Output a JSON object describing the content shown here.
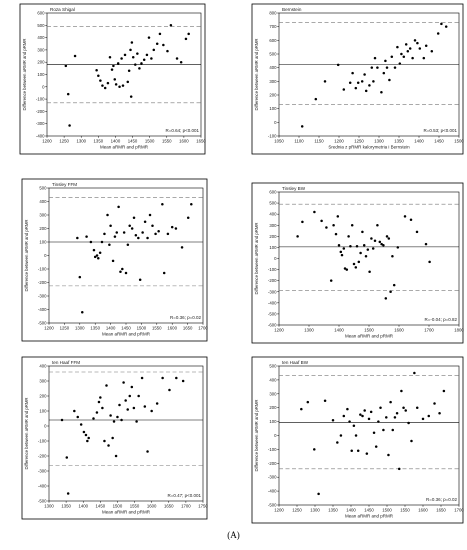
{
  "caption": "(A)",
  "chart_data": [
    {
      "type": "scatter",
      "title": "Roza Shigal",
      "xlabel": "Mean aRMR and pRMR",
      "ylabel": "Difference between aRMR and pRMR",
      "xlim": [
        1200,
        1650
      ],
      "xticks": [
        1200,
        1250,
        1300,
        1350,
        1400,
        1450,
        1500,
        1550,
        1600,
        1650
      ],
      "ylim": [
        -400,
        600
      ],
      "yticks": [
        -400,
        -300,
        -200,
        -100,
        0,
        100,
        200,
        300,
        400,
        500,
        600
      ],
      "mean_line": 180,
      "limits": [
        -130,
        490
      ],
      "annotation": "R=0.64; p<0.001",
      "points": [
        [
          1255,
          170
        ],
        [
          1262,
          -60
        ],
        [
          1266,
          -315
        ],
        [
          1282,
          250
        ],
        [
          1345,
          135
        ],
        [
          1350,
          90
        ],
        [
          1356,
          50
        ],
        [
          1362,
          10
        ],
        [
          1370,
          -10
        ],
        [
          1378,
          30
        ],
        [
          1384,
          240
        ],
        [
          1390,
          140
        ],
        [
          1394,
          170
        ],
        [
          1398,
          60
        ],
        [
          1402,
          20
        ],
        [
          1408,
          190
        ],
        [
          1412,
          0
        ],
        [
          1418,
          230
        ],
        [
          1422,
          10
        ],
        [
          1428,
          260
        ],
        [
          1436,
          40
        ],
        [
          1440,
          130
        ],
        [
          1444,
          300
        ],
        [
          1446,
          -80
        ],
        [
          1448,
          360
        ],
        [
          1452,
          240
        ],
        [
          1458,
          180
        ],
        [
          1464,
          270
        ],
        [
          1470,
          150
        ],
        [
          1476,
          190
        ],
        [
          1484,
          220
        ],
        [
          1492,
          260
        ],
        [
          1498,
          400
        ],
        [
          1505,
          230
        ],
        [
          1512,
          300
        ],
        [
          1522,
          350
        ],
        [
          1530,
          430
        ],
        [
          1540,
          340
        ],
        [
          1552,
          290
        ],
        [
          1562,
          500
        ],
        [
          1580,
          230
        ],
        [
          1592,
          200
        ],
        [
          1606,
          390
        ],
        [
          1614,
          430
        ]
      ]
    },
    {
      "type": "scatter",
      "title": "Bernstein",
      "xlabel": "Srednia z pRMR kalorymetria i Bernstein",
      "ylabel": "Difference between aRMR and pRMR",
      "xlim": [
        1050,
        1500
      ],
      "xticks": [
        1050,
        1100,
        1150,
        1200,
        1250,
        1300,
        1350,
        1400,
        1450,
        1500
      ],
      "ylim": [
        -100,
        800
      ],
      "yticks": [
        -100,
        0,
        100,
        200,
        300,
        400,
        500,
        600,
        700,
        800
      ],
      "mean_line": 425,
      "limits": [
        130,
        730
      ],
      "annotation": "R=0.53; p<0.001",
      "points": [
        [
          1108,
          -30
        ],
        [
          1142,
          170
        ],
        [
          1165,
          300
        ],
        [
          1198,
          420
        ],
        [
          1212,
          240
        ],
        [
          1228,
          290
        ],
        [
          1234,
          360
        ],
        [
          1242,
          250
        ],
        [
          1248,
          290
        ],
        [
          1258,
          300
        ],
        [
          1264,
          350
        ],
        [
          1268,
          230
        ],
        [
          1276,
          270
        ],
        [
          1282,
          400
        ],
        [
          1286,
          300
        ],
        [
          1290,
          470
        ],
        [
          1296,
          400
        ],
        [
          1306,
          220
        ],
        [
          1312,
          360
        ],
        [
          1316,
          450
        ],
        [
          1320,
          400
        ],
        [
          1326,
          310
        ],
        [
          1332,
          480
        ],
        [
          1340,
          400
        ],
        [
          1346,
          550
        ],
        [
          1352,
          430
        ],
        [
          1356,
          500
        ],
        [
          1362,
          480
        ],
        [
          1368,
          570
        ],
        [
          1372,
          520
        ],
        [
          1378,
          540
        ],
        [
          1384,
          470
        ],
        [
          1390,
          600
        ],
        [
          1396,
          580
        ],
        [
          1402,
          540
        ],
        [
          1412,
          470
        ],
        [
          1418,
          560
        ],
        [
          1432,
          520
        ],
        [
          1448,
          650
        ],
        [
          1456,
          720
        ],
        [
          1468,
          700
        ]
      ]
    },
    {
      "type": "scatter",
      "title": "Tinsley FFM",
      "xlabel": "Mean aRMR and pRMR",
      "ylabel": "Difference between aRMR and pRMR",
      "xlim": [
        1200,
        1700
      ],
      "xticks": [
        1200,
        1250,
        1300,
        1350,
        1400,
        1450,
        1500,
        1550,
        1600,
        1650,
        1700
      ],
      "ylim": [
        -500,
        500
      ],
      "yticks": [
        -500,
        -400,
        -300,
        -200,
        -100,
        0,
        100,
        200,
        300,
        400,
        500
      ],
      "mean_line": 100,
      "limits": [
        -225,
        430
      ],
      "annotation": "R=0.36; p=0.02",
      "points": [
        [
          1292,
          130
        ],
        [
          1300,
          -160
        ],
        [
          1308,
          -420
        ],
        [
          1322,
          140
        ],
        [
          1336,
          100
        ],
        [
          1346,
          40
        ],
        [
          1350,
          -10
        ],
        [
          1356,
          0
        ],
        [
          1360,
          -20
        ],
        [
          1366,
          20
        ],
        [
          1372,
          100
        ],
        [
          1380,
          160
        ],
        [
          1390,
          300
        ],
        [
          1396,
          80
        ],
        [
          1400,
          220
        ],
        [
          1408,
          -40
        ],
        [
          1414,
          140
        ],
        [
          1420,
          170
        ],
        [
          1426,
          360
        ],
        [
          1432,
          -120
        ],
        [
          1438,
          -100
        ],
        [
          1444,
          170
        ],
        [
          1450,
          -130
        ],
        [
          1456,
          80
        ],
        [
          1462,
          220
        ],
        [
          1470,
          200
        ],
        [
          1476,
          280
        ],
        [
          1482,
          150
        ],
        [
          1490,
          130
        ],
        [
          1496,
          -180
        ],
        [
          1504,
          170
        ],
        [
          1512,
          250
        ],
        [
          1520,
          130
        ],
        [
          1528,
          300
        ],
        [
          1536,
          220
        ],
        [
          1546,
          160
        ],
        [
          1556,
          180
        ],
        [
          1568,
          380
        ],
        [
          1574,
          -130
        ],
        [
          1586,
          160
        ],
        [
          1600,
          210
        ],
        [
          1612,
          200
        ],
        [
          1632,
          60
        ],
        [
          1652,
          280
        ],
        [
          1662,
          380
        ]
      ]
    },
    {
      "type": "scatter",
      "title": "Tinsley BW",
      "xlabel": "Mean aRMR and pRMR",
      "ylabel": "Difference between aRMR and pRMR",
      "xlim": [
        1200,
        1800
      ],
      "xticks": [
        1200,
        1300,
        1400,
        1500,
        1600,
        1700,
        1800
      ],
      "ylim": [
        -600,
        600
      ],
      "yticks": [
        -600,
        -500,
        -400,
        -300,
        -200,
        -100,
        0,
        100,
        200,
        300,
        400,
        500,
        600
      ],
      "mean_line": 105,
      "limits": [
        -290,
        490
      ],
      "annotation": "R=-0.04; p=0.82",
      "points": [
        [
          1262,
          200
        ],
        [
          1278,
          330
        ],
        [
          1318,
          420
        ],
        [
          1342,
          340
        ],
        [
          1358,
          280
        ],
        [
          1374,
          -200
        ],
        [
          1382,
          300
        ],
        [
          1390,
          220
        ],
        [
          1396,
          380
        ],
        [
          1400,
          120
        ],
        [
          1406,
          60
        ],
        [
          1410,
          30
        ],
        [
          1416,
          90
        ],
        [
          1420,
          -90
        ],
        [
          1426,
          -100
        ],
        [
          1432,
          200
        ],
        [
          1438,
          110
        ],
        [
          1444,
          300
        ],
        [
          1450,
          -50
        ],
        [
          1456,
          -80
        ],
        [
          1460,
          110
        ],
        [
          1466,
          -30
        ],
        [
          1472,
          50
        ],
        [
          1478,
          240
        ],
        [
          1484,
          120
        ],
        [
          1490,
          20
        ],
        [
          1496,
          80
        ],
        [
          1502,
          -120
        ],
        [
          1508,
          180
        ],
        [
          1514,
          90
        ],
        [
          1520,
          160
        ],
        [
          1528,
          300
        ],
        [
          1536,
          150
        ],
        [
          1542,
          130
        ],
        [
          1548,
          120
        ],
        [
          1556,
          -360
        ],
        [
          1560,
          200
        ],
        [
          1566,
          180
        ],
        [
          1572,
          -300
        ],
        [
          1578,
          20
        ],
        [
          1584,
          -240
        ],
        [
          1596,
          100
        ],
        [
          1620,
          380
        ],
        [
          1640,
          350
        ],
        [
          1660,
          240
        ],
        [
          1690,
          130
        ],
        [
          1702,
          -30
        ]
      ]
    },
    {
      "type": "scatter",
      "title": "ten Haaf FFM",
      "xlabel": "Mean aRMR and pRMR",
      "ylabel": "Difference between aRMR and pRMR",
      "xlim": [
        1300,
        1750
      ],
      "xticks": [
        1300,
        1350,
        1400,
        1450,
        1500,
        1550,
        1600,
        1650,
        1700,
        1750
      ],
      "ylim": [
        -500,
        400
      ],
      "yticks": [
        -500,
        -400,
        -300,
        -200,
        -100,
        0,
        100,
        200,
        300,
        400
      ],
      "mean_line": 40,
      "limits": [
        -265,
        360
      ],
      "annotation": "R=0.47; p<0.001",
      "points": [
        [
          1338,
          40
        ],
        [
          1352,
          -210
        ],
        [
          1356,
          -450
        ],
        [
          1374,
          100
        ],
        [
          1384,
          60
        ],
        [
          1394,
          10
        ],
        [
          1402,
          -40
        ],
        [
          1408,
          -60
        ],
        [
          1412,
          -100
        ],
        [
          1416,
          -80
        ],
        [
          1430,
          50
        ],
        [
          1440,
          90
        ],
        [
          1446,
          160
        ],
        [
          1450,
          190
        ],
        [
          1456,
          120
        ],
        [
          1462,
          -100
        ],
        [
          1468,
          270
        ],
        [
          1474,
          -130
        ],
        [
          1480,
          70
        ],
        [
          1486,
          -80
        ],
        [
          1490,
          30
        ],
        [
          1496,
          -200
        ],
        [
          1500,
          60
        ],
        [
          1506,
          140
        ],
        [
          1512,
          40
        ],
        [
          1518,
          290
        ],
        [
          1524,
          170
        ],
        [
          1530,
          110
        ],
        [
          1536,
          200
        ],
        [
          1542,
          260
        ],
        [
          1548,
          120
        ],
        [
          1556,
          30
        ],
        [
          1562,
          200
        ],
        [
          1572,
          320
        ],
        [
          1580,
          130
        ],
        [
          1588,
          -170
        ],
        [
          1600,
          100
        ],
        [
          1616,
          150
        ],
        [
          1632,
          320
        ],
        [
          1652,
          240
        ],
        [
          1672,
          320
        ],
        [
          1692,
          300
        ]
      ]
    },
    {
      "type": "scatter",
      "title": "ten Haaf BW",
      "xlabel": "Mean aRMR and pRMR",
      "ylabel": "Difference between aRMR and pRMR",
      "xlim": [
        1200,
        1700
      ],
      "xticks": [
        1200,
        1250,
        1300,
        1350,
        1400,
        1450,
        1500,
        1550,
        1600,
        1650,
        1700
      ],
      "ylim": [
        -500,
        500
      ],
      "yticks": [
        -500,
        -400,
        -300,
        -200,
        -100,
        0,
        100,
        200,
        300,
        400,
        500
      ],
      "mean_line": 95,
      "limits": [
        -240,
        430
      ],
      "annotation": "R=0.36; p=0.02",
      "points": [
        [
          1262,
          190
        ],
        [
          1280,
          240
        ],
        [
          1298,
          -100
        ],
        [
          1310,
          -420
        ],
        [
          1328,
          250
        ],
        [
          1350,
          110
        ],
        [
          1362,
          -50
        ],
        [
          1372,
          0
        ],
        [
          1380,
          140
        ],
        [
          1390,
          190
        ],
        [
          1396,
          100
        ],
        [
          1402,
          -110
        ],
        [
          1408,
          70
        ],
        [
          1414,
          0
        ],
        [
          1420,
          -110
        ],
        [
          1426,
          150
        ],
        [
          1432,
          140
        ],
        [
          1438,
          180
        ],
        [
          1444,
          -130
        ],
        [
          1450,
          120
        ],
        [
          1456,
          170
        ],
        [
          1464,
          20
        ],
        [
          1470,
          -80
        ],
        [
          1476,
          100
        ],
        [
          1482,
          200
        ],
        [
          1490,
          40
        ],
        [
          1498,
          130
        ],
        [
          1504,
          -140
        ],
        [
          1510,
          240
        ],
        [
          1516,
          40
        ],
        [
          1522,
          130
        ],
        [
          1528,
          160
        ],
        [
          1534,
          -240
        ],
        [
          1540,
          320
        ],
        [
          1546,
          200
        ],
        [
          1552,
          180
        ],
        [
          1560,
          90
        ],
        [
          1568,
          -40
        ],
        [
          1576,
          450
        ],
        [
          1584,
          200
        ],
        [
          1600,
          120
        ],
        [
          1616,
          140
        ],
        [
          1632,
          230
        ],
        [
          1646,
          160
        ],
        [
          1658,
          320
        ]
      ]
    }
  ]
}
